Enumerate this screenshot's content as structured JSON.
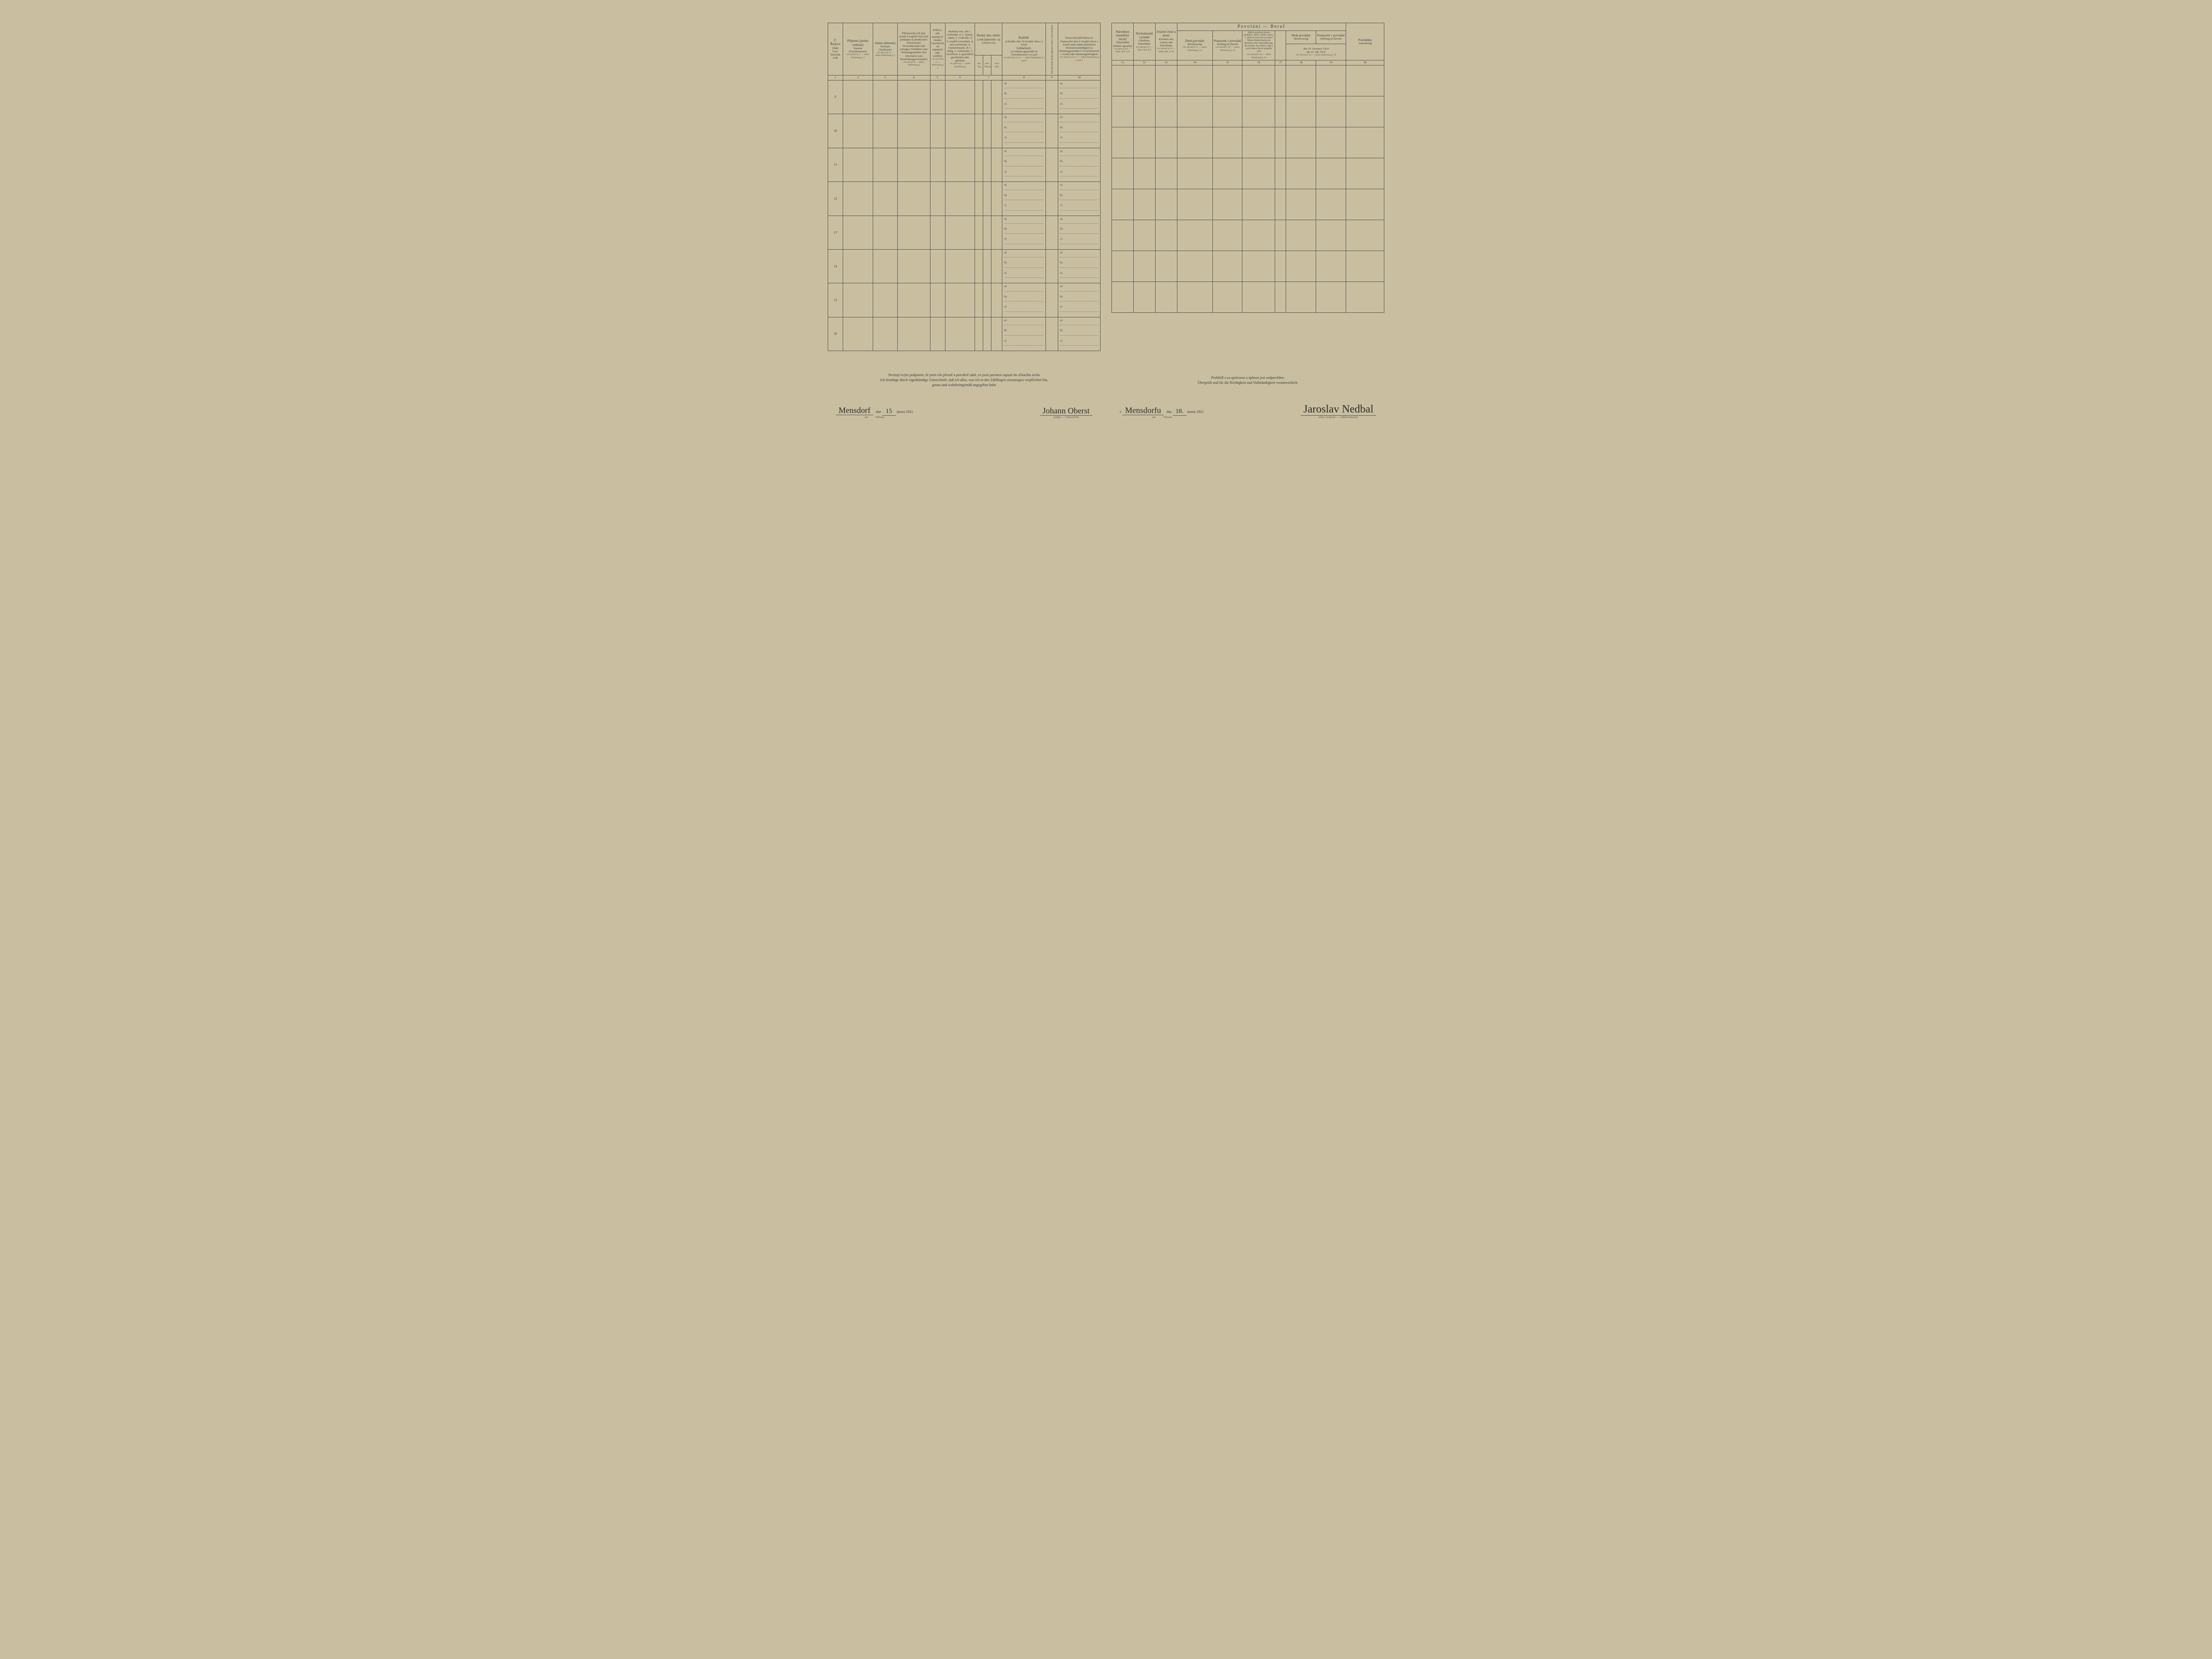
{
  "colors": {
    "paper": "#c9bfa0",
    "ink": "#3a3a3a",
    "rule": "#555555",
    "dotted": "#777777"
  },
  "left": {
    "columns": {
      "c1": {
        "cz": "Č.",
        "cz2": "Řadové číslo",
        "de": "Fort-laufende Zahl"
      },
      "c2": {
        "cz": "Příjmení (jméno rodinné)",
        "de": "Zuname (Familienname)",
        "ref": "viz návod § 1 — siehe Anleitung § 1"
      },
      "c3": {
        "cz": "Jméno (křestní)",
        "de": "Vorname (Taufname)",
        "ref": "viz návod § 2 — siehe Anleitung § 2"
      },
      "c4": {
        "cz": "Příbuzenský neb jiný poměr k majiteli bytu (při podnájmu k přednostovi domácnosti)",
        "de": "Verwandtschaft oder sonstiges Verhältnis zum Wohnungsinhaber (bei Aftermiete zum Haushaltungsvorstande)",
        "ref": "viz návod § — siehe Anleitung §"
      },
      "c5": {
        "cz": "Pohlaví, zda mužské či ženské",
        "de": "Geschlecht, ob männlich oder weiblich",
        "ref": "viz návod § 3 — Anleitung § 3"
      },
      "c6": {
        "cz": "Rodinný stav, zda 1. svobodný -á, 2. ženatý, vdaná, 3. ovdovělý -á, 4. soudně rozvedený -á, neb rozloučený -á",
        "de": "Familienstand, ob 1. ledig, 2. verheiratet, 3. verwitwet, 4. gerichtlich geschieden oder getrennt",
        "ref": "viz návod § — siehe Anleitung §"
      },
      "c7": {
        "cz": "Rodný den, měsíc a rok (narozen -a)",
        "de": "Geboren am",
        "sub_a": "den Tag",
        "sub_b": "měs. Monat",
        "sub_c": "roku Jahr",
        "ref": "viz návod § — siehe Anl. §"
      },
      "c8": {
        "cz": "Rodiště:",
        "cz_items": "a) Rodná obec  b) Soudní okres  c) Země",
        "de": "Geburtsort:",
        "de_items": "a) Geburts-gemeinde  b) Gerichtsbezirk  c) Land",
        "ref": "viz návod § 4 a 5 — siehe Anleitung § 4 und 5"
      },
      "c9": {
        "cz": "Od kdy (rok) bydlí zapsaná osoba v obci pobytu?",
        "de": "Seit wann wohnt die Person in der Gemeinde?",
        "ref": "viz návod § 4 a 6 — siehe Anl. § 4 u 6"
      },
      "c10": {
        "cz": "Domovská příslušnost (a Domovská obec  b Soudní okres  c Země) aneb státní příslušnost",
        "de": "Heimatszuständigkeit (a Heimatsgemeinde  b Gerichtsbezirk  c Land) oder Staatsangehörigkeit",
        "ref": "viz návod § 4 a 7 — siehe Anleitung § 4 und 7"
      }
    },
    "colnums": [
      "1",
      "2",
      "3",
      "4",
      "5",
      "6",
      "7",
      "8",
      "9",
      "10"
    ],
    "rows": [
      "9",
      "10",
      "11",
      "12",
      "13",
      "14",
      "15",
      "16"
    ],
    "abc_labels": [
      "a)",
      "b)",
      "c)"
    ],
    "declaration": {
      "cz": "Stvrzuji svým podpisem, že jsem vše přesně a pravdivě udal, co jsem povinen zapsati do sčítacího archu",
      "de1": "Ich bestätige durch eigenhändige Unterschrift, daß ich alles, was ich in den Zählbogen einzutragen verpflichtet bin,",
      "de2": "genau und wahrheitsgemäß angegeben habe"
    },
    "sig": {
      "place_hand": "Mensdorf",
      "day_hand": "15",
      "dne": "dne",
      "am": "am",
      "month_cz": "února",
      "month_de": "Februar",
      "year": "1921",
      "signer_hand": "Johann Oberst",
      "signer_sub": "podpis — Unterschrift"
    }
  },
  "right": {
    "columns": {
      "c11": {
        "cz": "Národnost (mateřský jazyk)",
        "de": "Nationalität (Mutter-sprache)",
        "ref": "viz návod § 8 — siehe Anl. § 8"
      },
      "c12": {
        "cz": "Ná-boženské vyznání",
        "de": "Glaubens-bekenntnis",
        "ref": "viz návod § 9 — siehe Anl. § 9"
      },
      "c13": {
        "cz": "Znalost čtení a psaní",
        "de": "Kenntnis des Lesens und Schreibens",
        "ref": "viz návod § 10 — siehe Anl. § 10"
      },
      "beruf_title": "Povolání  —  Beruf",
      "c14": {
        "cz": "Druh povolání",
        "de": "Berufszweig",
        "ref": "viz návod § 11 — siehe Anleitung § 11"
      },
      "c15": {
        "cz": "Postavení v povolání",
        "de": "Stellung im Berufe",
        "ref": "viz návod § 12 — siehe Anleitung § 12"
      },
      "c16": {
        "cz": "Bližší označení závodu (podniku, ústavu, úřadu a pod.), v němž se koná toto povolání",
        "de": "Nähere Bezeichnung des Betriebes (der Unternehmung, der Anstalt, des Amtes u.dgl.), worin dieser Beruf ausgeübt wird",
        "ref": "viz návod § 13 — siehe Anleitung § 13"
      },
      "c17": {
        "cz": "",
        "de": ""
      },
      "c18": {
        "cz": "Druh povolání",
        "de": "Berufszweig"
      },
      "c19": {
        "cz": "Postavení v povolání",
        "de": "Stellung im Berufe"
      },
      "g1819": {
        "cz": "dne 16. července 1914",
        "de": "am 16. Juli 1914",
        "ref": "viz návod § 14 — siehe Anleitung § 14"
      },
      "c20": {
        "cz": "Poznámka",
        "de": "Anmerkung"
      }
    },
    "colnums": [
      "11",
      "12",
      "13",
      "14",
      "15",
      "16",
      "17",
      "18",
      "19",
      "20"
    ],
    "rows": [
      "",
      "",
      "",
      "",
      "",
      "",
      "",
      ""
    ],
    "declaration": {
      "cz": "Prohlédl a za správnost a úplnost jest zodpověden:",
      "de": "Überprüft und für die Richtigkeit und Vollständigkeit verantwortlich:"
    },
    "sig": {
      "v": "v",
      "place_hand": "Mensdorfu",
      "dne": "dne",
      "am": "am",
      "day_hand": "18.",
      "month_cz": "února",
      "month_de": "Februar",
      "year": "1921.",
      "signer_hand": "Jaroslav Nedbal",
      "signer_sub": "sčítací komisař. — Zählkommissär."
    }
  }
}
